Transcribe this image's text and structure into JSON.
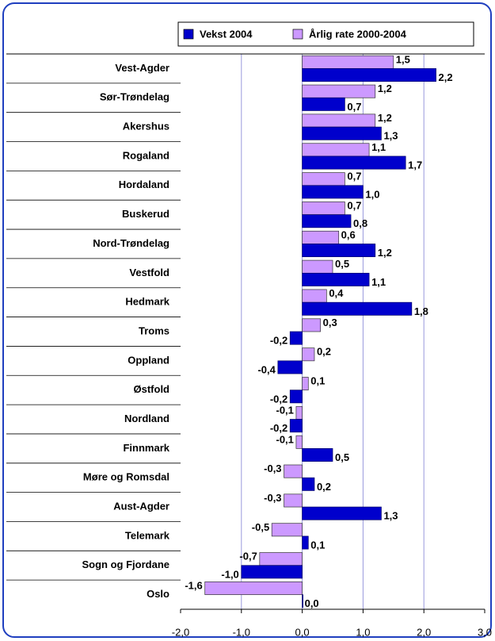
{
  "chart_data": {
    "type": "hbar",
    "categories": [
      "Vest-Agder",
      "Sør-Trøndelag",
      "Akershus",
      "Rogaland",
      "Hordaland",
      "Buskerud",
      "Nord-Trøndelag",
      "Vestfold",
      "Hedmark",
      "Troms",
      "Oppland",
      "Østfold",
      "Nordland",
      "Finnmark",
      "Møre og Romsdal",
      "Aust-Agder",
      "Telemark",
      "Sogn og Fjordane",
      "Oslo"
    ],
    "series": [
      {
        "name": "Vekst 2004",
        "color": "#0000cc",
        "values": [
          2.2,
          0.7,
          1.3,
          1.7,
          1.0,
          0.8,
          1.2,
          1.1,
          1.8,
          -0.2,
          -0.4,
          -0.2,
          -0.2,
          0.5,
          0.2,
          1.3,
          0.1,
          -1.0,
          0.0
        ],
        "value_labels": [
          "2,2",
          "0,7",
          "1,3",
          "1,7",
          "1,0",
          "0,8",
          "1,2",
          "1,1",
          "1,8",
          "-0,2",
          "-0,4",
          "-0,2",
          "-0,2",
          "0,5",
          "0,2",
          "1,3",
          "0,1",
          "-1,0",
          "0,0"
        ]
      },
      {
        "name": "Årlig rate 2000-2004",
        "color": "#cc99ff",
        "values": [
          1.5,
          1.2,
          1.2,
          1.1,
          0.7,
          0.7,
          0.6,
          0.5,
          0.4,
          0.3,
          0.2,
          0.1,
          -0.1,
          -0.1,
          -0.3,
          -0.3,
          -0.5,
          -0.7,
          -1.6
        ],
        "value_labels": [
          "1,5",
          "1,2",
          "1,2",
          "1,1",
          "0,7",
          "0,7",
          "0,6",
          "0,5",
          "0,4",
          "0,3",
          "0,2",
          "0,1",
          "-0,1",
          "-0,1",
          "-0,3",
          "-0,3",
          "-0,5",
          "-0,7",
          "-1,6"
        ]
      }
    ],
    "xlim": [
      -2.0,
      3.0
    ],
    "xticks": [
      {
        "value": -2.0,
        "label": "-2,0"
      },
      {
        "value": -1.0,
        "label": "-1,0"
      },
      {
        "value": 0.0,
        "label": "0,0"
      },
      {
        "value": 1.0,
        "label": "1,0"
      },
      {
        "value": 2.0,
        "label": "2,0"
      },
      {
        "value": 3.0,
        "label": "3,0"
      }
    ],
    "grid": true,
    "legend": "top"
  }
}
